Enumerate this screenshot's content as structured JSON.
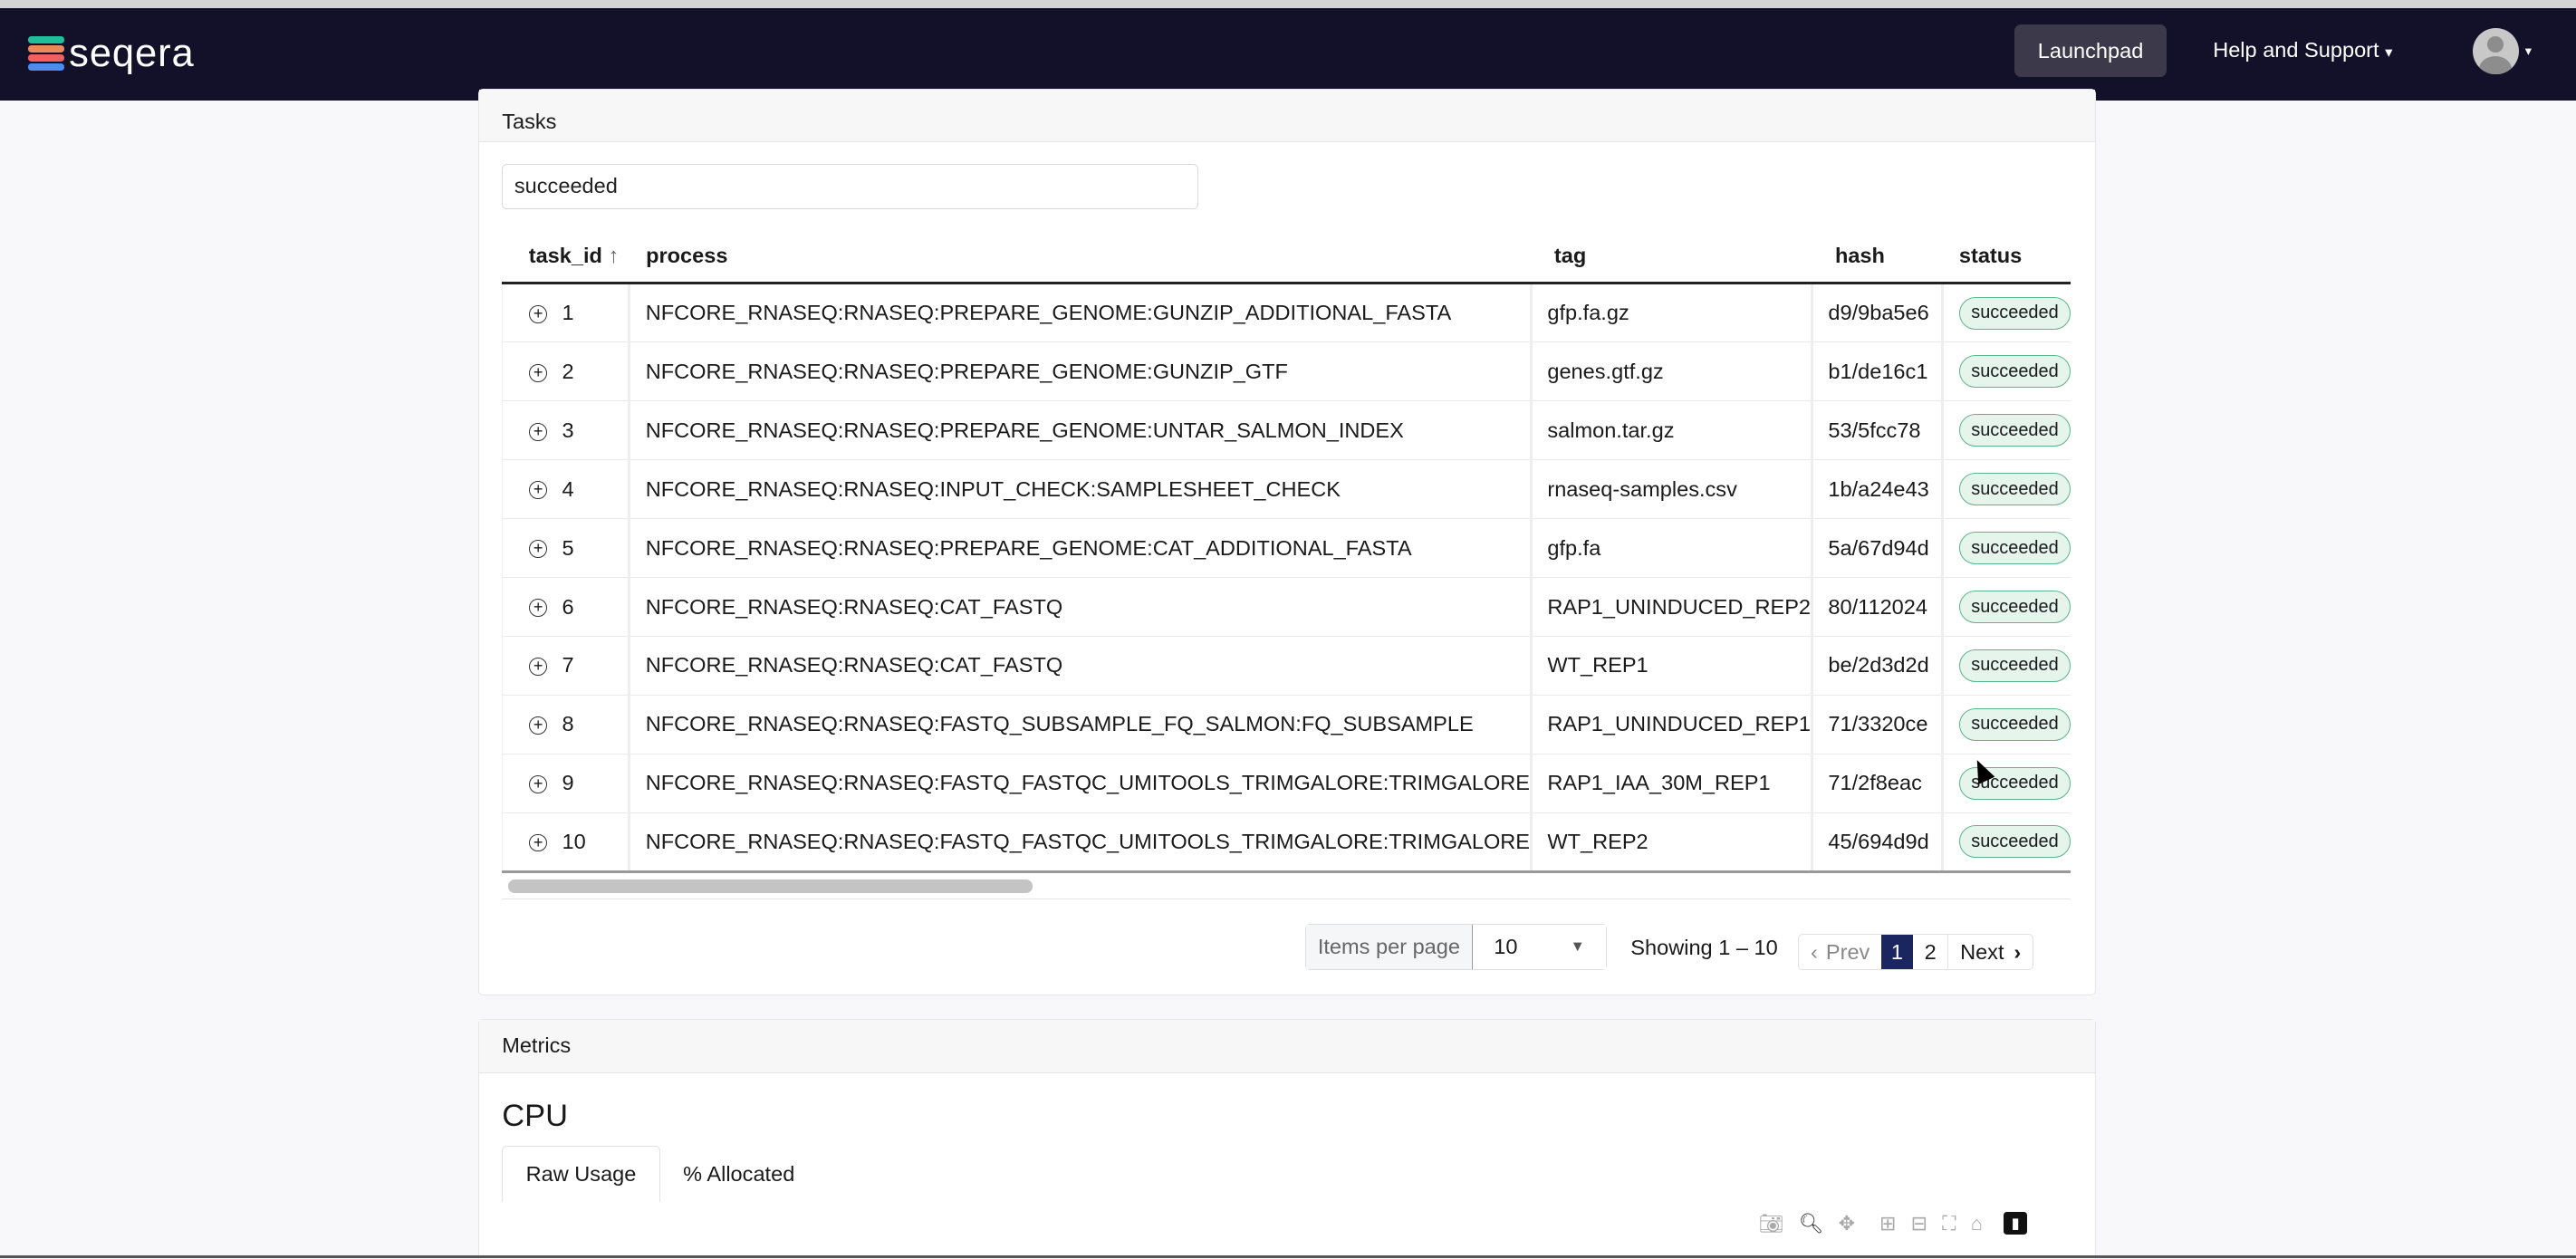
{
  "nav": {
    "logo": "seqera",
    "launchpad": "Launchpad",
    "help": "Help and Support",
    "help_caret": "▾",
    "avatar_caret": "▾"
  },
  "tasks": {
    "title": "Tasks",
    "search_value": "succeeded",
    "columns": [
      "task_id",
      "process",
      "tag",
      "hash",
      "status"
    ],
    "sort_icon": "↑",
    "rows": [
      {
        "id": "1",
        "process": "NFCORE_RNASEQ:RNASEQ:PREPARE_GENOME:GUNZIP_ADDITIONAL_FASTA",
        "tag": "gfp.fa.gz",
        "hash": "d9/9ba5e6",
        "status": "succeeded"
      },
      {
        "id": "2",
        "process": "NFCORE_RNASEQ:RNASEQ:PREPARE_GENOME:GUNZIP_GTF",
        "tag": "genes.gtf.gz",
        "hash": "b1/de16c1",
        "status": "succeeded"
      },
      {
        "id": "3",
        "process": "NFCORE_RNASEQ:RNASEQ:PREPARE_GENOME:UNTAR_SALMON_INDEX",
        "tag": "salmon.tar.gz",
        "hash": "53/5fcc78",
        "status": "succeeded"
      },
      {
        "id": "4",
        "process": "NFCORE_RNASEQ:RNASEQ:INPUT_CHECK:SAMPLESHEET_CHECK",
        "tag": "rnaseq-samples.csv",
        "hash": "1b/a24e43",
        "status": "succeeded"
      },
      {
        "id": "5",
        "process": "NFCORE_RNASEQ:RNASEQ:PREPARE_GENOME:CAT_ADDITIONAL_FASTA",
        "tag": "gfp.fa",
        "hash": "5a/67d94d",
        "status": "succeeded"
      },
      {
        "id": "6",
        "process": "NFCORE_RNASEQ:RNASEQ:CAT_FASTQ",
        "tag": "RAP1_UNINDUCED_REP2",
        "hash": "80/112024",
        "status": "succeeded"
      },
      {
        "id": "7",
        "process": "NFCORE_RNASEQ:RNASEQ:CAT_FASTQ",
        "tag": "WT_REP1",
        "hash": "be/2d3d2d",
        "status": "succeeded"
      },
      {
        "id": "8",
        "process": "NFCORE_RNASEQ:RNASEQ:FASTQ_SUBSAMPLE_FQ_SALMON:FQ_SUBSAMPLE",
        "tag": "RAP1_UNINDUCED_REP1",
        "hash": "71/3320ce",
        "status": "succeeded"
      },
      {
        "id": "9",
        "process": "NFCORE_RNASEQ:RNASEQ:FASTQ_FASTQC_UMITOOLS_TRIMGALORE:TRIMGALORE",
        "tag": "RAP1_IAA_30M_REP1",
        "hash": "71/2f8eac",
        "status": "succeeded"
      },
      {
        "id": "10",
        "process": "NFCORE_RNASEQ:RNASEQ:FASTQ_FASTQC_UMITOOLS_TRIMGALORE:TRIMGALORE",
        "tag": "WT_REP2",
        "hash": "45/694d9d",
        "status": "succeeded"
      }
    ],
    "pagination": {
      "items_per_page_label": "Items per page",
      "items_per_page": "10",
      "showing": "Showing 1 – 10",
      "prev": "Prev",
      "pages": [
        "1",
        "2"
      ],
      "current_page": "1",
      "next": "Next"
    }
  },
  "metrics": {
    "title": "Metrics",
    "section": "CPU",
    "tabs": [
      "Raw Usage",
      "% Allocated"
    ],
    "active_tab": "Raw Usage",
    "toolbar": [
      "camera-icon",
      "zoom-icon",
      "pan-icon",
      "zoom-in-icon",
      "zoom-out-icon",
      "autoscale-icon",
      "home-icon",
      "plotly-logo"
    ]
  },
  "colors": {
    "nav_bg": "#13102a",
    "status_bg": "#e5f5ec",
    "status_border": "#5cb58a",
    "page_active": "#1b2660"
  }
}
